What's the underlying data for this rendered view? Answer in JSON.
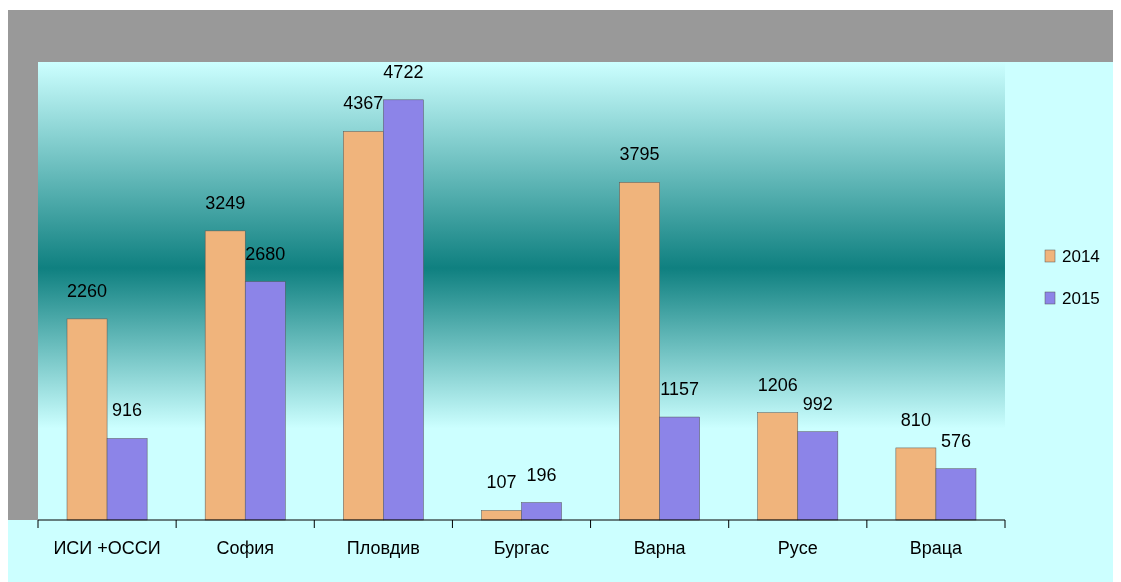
{
  "chart_data": {
    "type": "bar",
    "categories": [
      "ИСИ +ОССИ",
      "София",
      "Пловдив",
      "Бургас",
      "Варна",
      "Русе",
      "Враца"
    ],
    "series": [
      {
        "name": "2014",
        "color": "#f0b47c",
        "values": [
          2260,
          3249,
          4367,
          107,
          3795,
          1206,
          810
        ]
      },
      {
        "name": "2015",
        "color": "#8c84e8",
        "values": [
          916,
          2680,
          4722,
          196,
          1157,
          992,
          576
        ]
      }
    ],
    "data_labels": true,
    "legend": "right"
  }
}
